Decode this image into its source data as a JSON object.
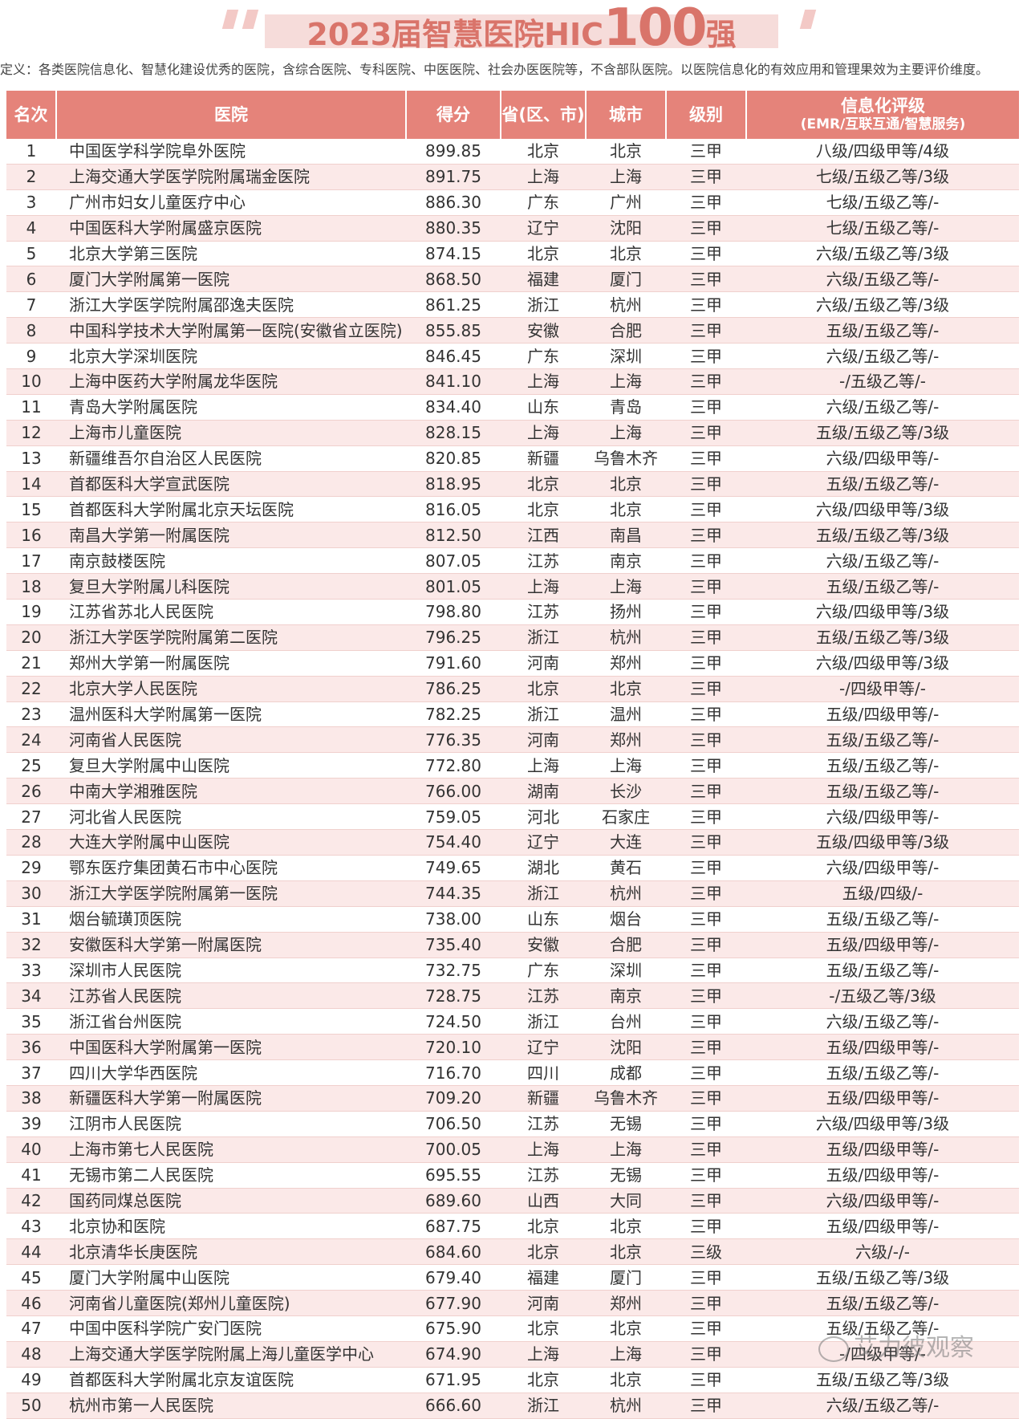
{
  "title": {
    "prefix": "2023届智慧医院HIC",
    "big": "100",
    "suffix": "强"
  },
  "definition": "定义：各类医院信息化、智慧化建设优秀的医院，含综合医院、专科医院、中医医院、社会办医医院等，不含部队医院。以医院信息化的有效应用和管理果效为主要评价维度。",
  "headers": {
    "rank": "名次",
    "hospital": "医院",
    "score": "得分",
    "province": "省(区、市)",
    "city": "城市",
    "level": "级别",
    "rating": "信息化评级",
    "rating_sub": "(EMR/互联互通/智慧服务)"
  },
  "rows": [
    {
      "rank": "1",
      "name": "中国医学科学院阜外医院",
      "score": "899.85",
      "province": "北京",
      "city": "北京",
      "level": "三甲",
      "rating": "八级/四级甲等/4级"
    },
    {
      "rank": "2",
      "name": "上海交通大学医学院附属瑞金医院",
      "score": "891.75",
      "province": "上海",
      "city": "上海",
      "level": "三甲",
      "rating": "七级/五级乙等/3级"
    },
    {
      "rank": "3",
      "name": "广州市妇女儿童医疗中心",
      "score": "886.30",
      "province": "广东",
      "city": "广州",
      "level": "三甲",
      "rating": "七级/五级乙等/-"
    },
    {
      "rank": "4",
      "name": "中国医科大学附属盛京医院",
      "score": "880.35",
      "province": "辽宁",
      "city": "沈阳",
      "level": "三甲",
      "rating": "七级/五级乙等/-"
    },
    {
      "rank": "5",
      "name": "北京大学第三医院",
      "score": "874.15",
      "province": "北京",
      "city": "北京",
      "level": "三甲",
      "rating": "六级/五级乙等/3级"
    },
    {
      "rank": "6",
      "name": "厦门大学附属第一医院",
      "score": "868.50",
      "province": "福建",
      "city": "厦门",
      "level": "三甲",
      "rating": "六级/五级乙等/-"
    },
    {
      "rank": "7",
      "name": "浙江大学医学院附属邵逸夫医院",
      "score": "861.25",
      "province": "浙江",
      "city": "杭州",
      "level": "三甲",
      "rating": "六级/五级乙等/3级"
    },
    {
      "rank": "8",
      "name": "中国科学技术大学附属第一医院(安徽省立医院)",
      "score": "855.85",
      "province": "安徽",
      "city": "合肥",
      "level": "三甲",
      "rating": "五级/五级乙等/-"
    },
    {
      "rank": "9",
      "name": "北京大学深圳医院",
      "score": "846.45",
      "province": "广东",
      "city": "深圳",
      "level": "三甲",
      "rating": "六级/五级乙等/-"
    },
    {
      "rank": "10",
      "name": "上海中医药大学附属龙华医院",
      "score": "841.10",
      "province": "上海",
      "city": "上海",
      "level": "三甲",
      "rating": "-/五级乙等/-"
    },
    {
      "rank": "11",
      "name": "青岛大学附属医院",
      "score": "834.40",
      "province": "山东",
      "city": "青岛",
      "level": "三甲",
      "rating": "六级/五级乙等/-"
    },
    {
      "rank": "12",
      "name": "上海市儿童医院",
      "score": "828.15",
      "province": "上海",
      "city": "上海",
      "level": "三甲",
      "rating": "五级/五级乙等/3级"
    },
    {
      "rank": "13",
      "name": "新疆维吾尔自治区人民医院",
      "score": "820.85",
      "province": "新疆",
      "city": "乌鲁木齐",
      "level": "三甲",
      "rating": "六级/四级甲等/-"
    },
    {
      "rank": "14",
      "name": "首都医科大学宣武医院",
      "score": "818.95",
      "province": "北京",
      "city": "北京",
      "level": "三甲",
      "rating": "五级/五级乙等/-"
    },
    {
      "rank": "15",
      "name": "首都医科大学附属北京天坛医院",
      "score": "816.05",
      "province": "北京",
      "city": "北京",
      "level": "三甲",
      "rating": "六级/四级甲等/3级"
    },
    {
      "rank": "16",
      "name": "南昌大学第一附属医院",
      "score": "812.50",
      "province": "江西",
      "city": "南昌",
      "level": "三甲",
      "rating": "五级/五级乙等/3级"
    },
    {
      "rank": "17",
      "name": "南京鼓楼医院",
      "score": "807.05",
      "province": "江苏",
      "city": "南京",
      "level": "三甲",
      "rating": "六级/五级乙等/-"
    },
    {
      "rank": "18",
      "name": "复旦大学附属儿科医院",
      "score": "801.05",
      "province": "上海",
      "city": "上海",
      "level": "三甲",
      "rating": "五级/五级乙等/-"
    },
    {
      "rank": "19",
      "name": "江苏省苏北人民医院",
      "score": "798.80",
      "province": "江苏",
      "city": "扬州",
      "level": "三甲",
      "rating": "六级/四级甲等/3级"
    },
    {
      "rank": "20",
      "name": "浙江大学医学院附属第二医院",
      "score": "796.25",
      "province": "浙江",
      "city": "杭州",
      "level": "三甲",
      "rating": "五级/五级乙等/3级"
    },
    {
      "rank": "21",
      "name": "郑州大学第一附属医院",
      "score": "791.60",
      "province": "河南",
      "city": "郑州",
      "level": "三甲",
      "rating": "六级/四级甲等/3级"
    },
    {
      "rank": "22",
      "name": "北京大学人民医院",
      "score": "786.25",
      "province": "北京",
      "city": "北京",
      "level": "三甲",
      "rating": "-/四级甲等/-"
    },
    {
      "rank": "23",
      "name": "温州医科大学附属第一医院",
      "score": "782.25",
      "province": "浙江",
      "city": "温州",
      "level": "三甲",
      "rating": "五级/四级甲等/-"
    },
    {
      "rank": "24",
      "name": "河南省人民医院",
      "score": "776.35",
      "province": "河南",
      "city": "郑州",
      "level": "三甲",
      "rating": "五级/五级乙等/-"
    },
    {
      "rank": "25",
      "name": "复旦大学附属中山医院",
      "score": "772.80",
      "province": "上海",
      "city": "上海",
      "level": "三甲",
      "rating": "五级/五级乙等/-"
    },
    {
      "rank": "26",
      "name": "中南大学湘雅医院",
      "score": "766.00",
      "province": "湖南",
      "city": "长沙",
      "level": "三甲",
      "rating": "五级/五级乙等/-"
    },
    {
      "rank": "27",
      "name": "河北省人民医院",
      "score": "759.05",
      "province": "河北",
      "city": "石家庄",
      "level": "三甲",
      "rating": "六级/四级甲等/-"
    },
    {
      "rank": "28",
      "name": "大连大学附属中山医院",
      "score": "754.40",
      "province": "辽宁",
      "city": "大连",
      "level": "三甲",
      "rating": "五级/四级甲等/3级"
    },
    {
      "rank": "29",
      "name": "鄂东医疗集团黄石市中心医院",
      "score": "749.65",
      "province": "湖北",
      "city": "黄石",
      "level": "三甲",
      "rating": "六级/四级甲等/-"
    },
    {
      "rank": "30",
      "name": "浙江大学医学院附属第一医院",
      "score": "744.35",
      "province": "浙江",
      "city": "杭州",
      "level": "三甲",
      "rating": "五级/四级/-"
    },
    {
      "rank": "31",
      "name": "烟台毓璜顶医院",
      "score": "738.00",
      "province": "山东",
      "city": "烟台",
      "level": "三甲",
      "rating": "五级/五级乙等/-"
    },
    {
      "rank": "32",
      "name": "安徽医科大学第一附属医院",
      "score": "735.40",
      "province": "安徽",
      "city": "合肥",
      "level": "三甲",
      "rating": "五级/四级甲等/-"
    },
    {
      "rank": "33",
      "name": "深圳市人民医院",
      "score": "732.75",
      "province": "广东",
      "city": "深圳",
      "level": "三甲",
      "rating": "五级/五级乙等/-"
    },
    {
      "rank": "34",
      "name": "江苏省人民医院",
      "score": "728.75",
      "province": "江苏",
      "city": "南京",
      "level": "三甲",
      "rating": "-/五级乙等/3级"
    },
    {
      "rank": "35",
      "name": "浙江省台州医院",
      "score": "724.50",
      "province": "浙江",
      "city": "台州",
      "level": "三甲",
      "rating": "六级/五级乙等/-"
    },
    {
      "rank": "36",
      "name": "中国医科大学附属第一医院",
      "score": "720.10",
      "province": "辽宁",
      "city": "沈阳",
      "level": "三甲",
      "rating": "五级/四级甲等/-"
    },
    {
      "rank": "37",
      "name": "四川大学华西医院",
      "score": "716.70",
      "province": "四川",
      "city": "成都",
      "level": "三甲",
      "rating": "五级/五级乙等/-"
    },
    {
      "rank": "38",
      "name": "新疆医科大学第一附属医院",
      "score": "709.20",
      "province": "新疆",
      "city": "乌鲁木齐",
      "level": "三甲",
      "rating": "五级/四级甲等/-"
    },
    {
      "rank": "39",
      "name": "江阴市人民医院",
      "score": "706.50",
      "province": "江苏",
      "city": "无锡",
      "level": "三甲",
      "rating": "六级/四级甲等/3级"
    },
    {
      "rank": "40",
      "name": "上海市第七人民医院",
      "score": "700.05",
      "province": "上海",
      "city": "上海",
      "level": "三甲",
      "rating": "五级/四级甲等/-"
    },
    {
      "rank": "41",
      "name": "无锡市第二人民医院",
      "score": "695.55",
      "province": "江苏",
      "city": "无锡",
      "level": "三甲",
      "rating": "五级/四级甲等/-"
    },
    {
      "rank": "42",
      "name": "国药同煤总医院",
      "score": "689.60",
      "province": "山西",
      "city": "大同",
      "level": "三甲",
      "rating": "六级/四级甲等/-"
    },
    {
      "rank": "43",
      "name": "北京协和医院",
      "score": "687.75",
      "province": "北京",
      "city": "北京",
      "level": "三甲",
      "rating": "五级/四级甲等/-"
    },
    {
      "rank": "44",
      "name": "北京清华长庚医院",
      "score": "684.60",
      "province": "北京",
      "city": "北京",
      "level": "三级",
      "rating": "六级/-/-"
    },
    {
      "rank": "45",
      "name": "厦门大学附属中山医院",
      "score": "679.40",
      "province": "福建",
      "city": "厦门",
      "level": "三甲",
      "rating": "五级/五级乙等/3级"
    },
    {
      "rank": "46",
      "name": "河南省儿童医院(郑州儿童医院)",
      "score": "677.90",
      "province": "河南",
      "city": "郑州",
      "level": "三甲",
      "rating": "五级/五级乙等/-"
    },
    {
      "rank": "47",
      "name": "中国中医科学院广安门医院",
      "score": "675.90",
      "province": "北京",
      "city": "北京",
      "level": "三甲",
      "rating": "五级/五级乙等/-"
    },
    {
      "rank": "48",
      "name": "上海交通大学医学院附属上海儿童医学中心",
      "score": "674.90",
      "province": "上海",
      "city": "上海",
      "level": "三甲",
      "rating": "-/四级甲等/-"
    },
    {
      "rank": "49",
      "name": "首都医科大学附属北京友谊医院",
      "score": "671.95",
      "province": "北京",
      "city": "北京",
      "level": "三甲",
      "rating": "五级/五级乙等/3级"
    },
    {
      "rank": "50",
      "name": "杭州市第一人民医院",
      "score": "666.60",
      "province": "浙江",
      "city": "杭州",
      "level": "三甲",
      "rating": "六级/五级乙等/-"
    }
  ],
  "watermark": "艾力彼观察",
  "colors": {
    "header_bg": "#e5837a",
    "title": "#d9746a",
    "stripe": "#fbe9e8"
  }
}
